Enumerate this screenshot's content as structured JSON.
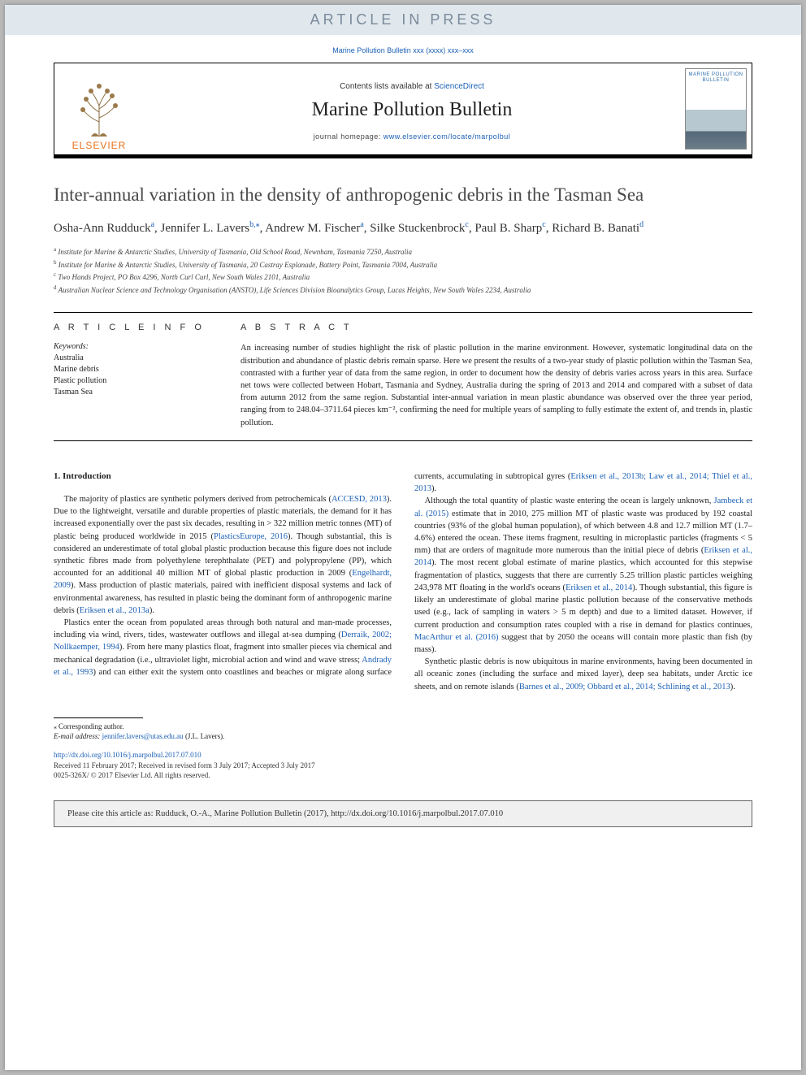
{
  "banner": {
    "aip": "ARTICLE IN PRESS"
  },
  "header": {
    "doi_line": "Marine Pollution Bulletin xxx (xxxx) xxx–xxx",
    "contents_prefix": "Contents lists available at ",
    "contents_link": "ScienceDirect",
    "journal": "Marine Pollution Bulletin",
    "homepage_prefix": "journal homepage: ",
    "homepage_link": "www.elsevier.com/locate/marpolbul",
    "publisher": "ELSEVIER",
    "cover_title": "MARINE POLLUTION BULLETIN"
  },
  "article": {
    "title": "Inter-annual variation in the density of anthropogenic debris in the Tasman Sea",
    "authors_html": "Osha-Ann Rudduck<sup class='aff'>a</sup>, Jennifer L. Lavers<sup class='aff'>b,⁎</sup>, Andrew M. Fischer<sup class='aff'>a</sup>, Silke Stuckenbrock<sup class='aff'>c</sup>, Paul B. Sharp<sup class='aff'>c</sup>, Richard B. Banati<sup class='aff'>d</sup>",
    "affiliations": [
      {
        "sup": "a",
        "text": "Institute for Marine & Antarctic Studies, University of Tasmania, Old School Road, Newnham, Tasmania 7250, Australia"
      },
      {
        "sup": "b",
        "text": "Institute for Marine & Antarctic Studies, University of Tasmania, 20 Castray Esplanade, Battery Point, Tasmania 7004, Australia"
      },
      {
        "sup": "c",
        "text": "Two Hands Project, PO Box 4296, North Curl Curl, New South Wales 2101, Australia"
      },
      {
        "sup": "d",
        "text": "Australian Nuclear Science and Technology Organisation (ANSTO), Life Sciences Division Bioanalytics Group, Lucas Heights, New South Wales 2234, Australia"
      }
    ]
  },
  "info": {
    "heading": "A R T I C L E  I N F O",
    "kw_label": "Keywords:",
    "keywords": [
      "Australia",
      "Marine debris",
      "Plastic pollution",
      "Tasman Sea"
    ]
  },
  "abstract": {
    "heading": "A B S T R A C T",
    "text": "An increasing number of studies highlight the risk of plastic pollution in the marine environment. However, systematic longitudinal data on the distribution and abundance of plastic debris remain sparse. Here we present the results of a two-year study of plastic pollution within the Tasman Sea, contrasted with a further year of data from the same region, in order to document how the density of debris varies across years in this area. Surface net tows were collected between Hobart, Tasmania and Sydney, Australia during the spring of 2013 and 2014 and compared with a subset of data from autumn 2012 from the same region. Substantial inter-annual variation in mean plastic abundance was observed over the three year period, ranging from to 248.04–3711.64 pieces km⁻², confirming the need for multiple years of sampling to fully estimate the extent of, and trends in, plastic pollution."
  },
  "body": {
    "heading": "1. Introduction",
    "p1_pre": "The majority of plastics are synthetic polymers derived from petrochemicals (",
    "p1_ref1": "ACCESD, 2013",
    "p1_mid1": "). Due to the lightweight, versatile and durable properties of plastic materials, the demand for it has increased exponentially over the past six decades, resulting in > 322 million metric tonnes (MT) of plastic being produced worldwide in 2015 (",
    "p1_ref2": "PlasticsEurope, 2016",
    "p1_mid2": "). Though substantial, this is considered an underestimate of total global plastic production because this figure does not include synthetic fibres made from polyethylene terephthalate (PET) and polypropylene (PP), which accounted for an additional 40 million MT of global plastic production in 2009 (",
    "p1_ref3": "Engelhardt, 2009",
    "p1_mid3": "). Mass production of plastic materials, paired with inefficient disposal systems and lack of environmental awareness, has resulted in plastic being the dominant form of anthropogenic marine debris (",
    "p1_ref4": "Eriksen et al., 2013a",
    "p1_end": ").",
    "p2_pre": "Plastics enter the ocean from populated areas through both natural and man-made processes, including via wind, rivers, tides, wastewater outflows and illegal at-sea dumping (",
    "p2_ref1": "Derraik, 2002; Nollkaemper, 1994",
    "p2_mid1": "). From here many plastics float, fragment into smaller pieces via chemical and mechanical degradation (i.e., ultraviolet light, microbial action and wind and wave stress; ",
    "p2_ref2": "Andrady et al., 1993",
    "p2_mid2": ") and can either exit the system onto coastlines and beaches or migrate along surface currents, accumulating in subtropical gyres (",
    "p2_ref3": "Eriksen et al., 2013b; Law et al., 2014; Thiel et al., 2013",
    "p2_end": ").",
    "p3_pre": "Although the total quantity of plastic waste entering the ocean is largely unknown, ",
    "p3_ref1": "Jambeck et al. (2015)",
    "p3_mid1": " estimate that in 2010, 275 million MT of plastic waste was produced by 192 coastal countries (93% of the global human population), of which between 4.8 and 12.7 million MT (1.7–4.6%) entered the ocean. These items fragment, resulting in microplastic particles (fragments < 5 mm) that are orders of magnitude more numerous than the initial piece of debris (",
    "p3_ref2": "Eriksen et al., 2014",
    "p3_mid2": "). The most recent global estimate of marine plastics, which accounted for this stepwise fragmentation of plastics, suggests that there are currently 5.25 trillion plastic particles weighing 243,978 MT floating in the world's oceans (",
    "p3_ref3": "Eriksen et al., 2014",
    "p3_mid3": "). Though substantial, this figure is likely an underestimate of global marine plastic pollution because of the conservative methods used (e.g., lack of sampling in waters > 5 m depth) and due to a limited dataset. However, if current production and consumption rates coupled with a rise in demand for plastics continues, ",
    "p3_ref4": "MacArthur et al. (2016)",
    "p3_end": " suggest that by 2050 the oceans will contain more plastic than fish (by mass).",
    "p4_pre": "Synthetic plastic debris is now ubiquitous in marine environments, having been documented in all oceanic zones (including the surface and mixed layer), deep sea habitats, under Arctic ice sheets, and on remote islands (",
    "p4_ref1": "Barnes et al., 2009; Obbard et al., 2014; Schlining et al., 2013",
    "p4_end": ")."
  },
  "footer": {
    "corr": "Corresponding author.",
    "email_label": "E-mail address: ",
    "email": "jennifer.lavers@utas.edu.au",
    "email_name": " (J.L. Lavers).",
    "doi": "http://dx.doi.org/10.1016/j.marpolbul.2017.07.010",
    "received": "Received 11 February 2017; Received in revised form 3 July 2017; Accepted 3 July 2017",
    "issn": "0025-326X/ © 2017 Elsevier Ltd. All rights reserved.",
    "cite": "Please cite this article as: Rudduck, O.-A., Marine Pollution Bulletin (2017), http://dx.doi.org/10.1016/j.marpolbul.2017.07.010"
  },
  "colors": {
    "link": "#1a5fb4",
    "elsevier_orange": "#e8701a",
    "banner_bg": "#e0e8ee",
    "banner_fg": "#7a8a9a",
    "page_bg": "#b8b8b8"
  }
}
